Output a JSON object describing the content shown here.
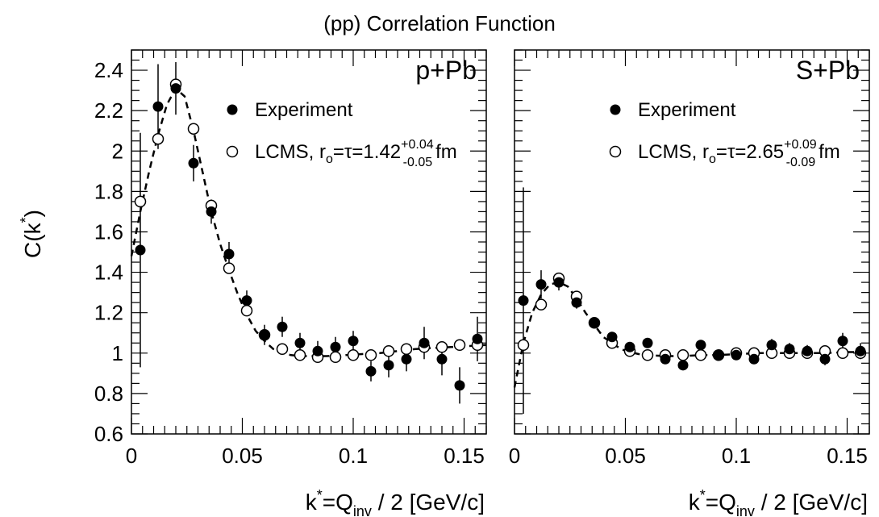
{
  "page": {
    "title": "(pp) Correlation Function",
    "ylabel_main": "C(k",
    "ylabel_sup": "*",
    "ylabel_close": ")"
  },
  "chart_data": [
    {
      "type": "scatter",
      "panel_label": "p+Pb",
      "xlabel_k": "k",
      "xlabel_sup": "*",
      "xlabel_eq": "=Q",
      "xlabel_sub": "inv",
      "xlabel_rest": " / 2  [GeV/c]",
      "xlim": [
        0,
        0.16
      ],
      "ylim": [
        0.6,
        2.5
      ],
      "xticks": [
        0,
        0.05,
        0.1,
        0.15
      ],
      "xtick_labels": [
        "0",
        "0.05",
        "0.1",
        "0.15"
      ],
      "yticks": [
        0.6,
        0.8,
        1,
        1.2,
        1.4,
        1.6,
        1.8,
        2,
        2.2,
        2.4
      ],
      "ytick_labels": [
        "0.6",
        "0.8",
        "1",
        "1.2",
        "1.4",
        "1.6",
        "1.8",
        "2",
        "2.2",
        "2.4"
      ],
      "legend": {
        "experiment": "Experiment",
        "lcms_main": "LCMS, r",
        "lcms_sub_o": "o",
        "lcms_mid": "=τ=1.42",
        "lcms_sup": "+0.04",
        "lcms_sub": "-0.05",
        "lcms_unit": "fm"
      },
      "series": [
        {
          "name": "Experiment",
          "marker": "filled-circle",
          "x": [
            0.004,
            0.012,
            0.02,
            0.028,
            0.036,
            0.044,
            0.052,
            0.06,
            0.068,
            0.076,
            0.084,
            0.092,
            0.1,
            0.108,
            0.116,
            0.124,
            0.132,
            0.14,
            0.148,
            0.156
          ],
          "y": [
            1.51,
            2.22,
            2.31,
            1.94,
            1.7,
            1.49,
            1.26,
            1.09,
            1.13,
            1.05,
            1.01,
            1.03,
            1.06,
            0.91,
            0.94,
            0.97,
            1.05,
            0.97,
            0.84,
            1.07
          ],
          "yerr": [
            0.58,
            0.21,
            0.13,
            0.09,
            0.06,
            0.06,
            0.05,
            0.05,
            0.05,
            0.05,
            0.05,
            0.05,
            0.05,
            0.05,
            0.06,
            0.06,
            0.08,
            0.08,
            0.09,
            0.11
          ]
        },
        {
          "name": "LCMS, r_o=τ=1.42 fm",
          "marker": "open-circle",
          "x": [
            0.004,
            0.012,
            0.02,
            0.028,
            0.036,
            0.044,
            0.052,
            0.06,
            0.068,
            0.076,
            0.084,
            0.092,
            0.1,
            0.108,
            0.116,
            0.124,
            0.132,
            0.14,
            0.148,
            0.156
          ],
          "y": [
            1.75,
            2.06,
            2.33,
            2.11,
            1.73,
            1.42,
            1.21,
            1.09,
            1.02,
            0.99,
            0.98,
            0.98,
            0.99,
            0.99,
            1.01,
            1.02,
            1.03,
            1.03,
            1.04,
            1.04
          ]
        }
      ],
      "fit_curve": {
        "x": [
          0.0,
          0.004,
          0.008,
          0.012,
          0.016,
          0.02,
          0.024,
          0.028,
          0.032,
          0.036,
          0.04,
          0.044,
          0.048,
          0.052,
          0.056,
          0.06,
          0.064,
          0.068,
          0.072,
          0.076,
          0.08,
          0.088,
          0.096,
          0.104,
          0.112,
          0.12,
          0.128,
          0.136,
          0.144,
          0.152,
          0.16
        ],
        "y": [
          1.48,
          1.7,
          1.9,
          2.08,
          2.23,
          2.31,
          2.27,
          2.1,
          1.9,
          1.7,
          1.54,
          1.41,
          1.29,
          1.19,
          1.11,
          1.06,
          1.02,
          1.0,
          0.99,
          0.985,
          0.985,
          0.985,
          0.99,
          0.995,
          1.0,
          1.01,
          1.02,
          1.025,
          1.03,
          1.035,
          1.04
        ]
      }
    },
    {
      "type": "scatter",
      "panel_label": "S+Pb",
      "xlabel_k": "k",
      "xlabel_sup": "*",
      "xlabel_eq": "=Q",
      "xlabel_sub": "inv",
      "xlabel_rest": " / 2  [GeV/c]",
      "xlim": [
        0,
        0.16
      ],
      "ylim": [
        0.6,
        2.5
      ],
      "xticks": [
        0,
        0.05,
        0.1,
        0.15
      ],
      "xtick_labels": [
        "0",
        "0.05",
        "0.1",
        "0.15"
      ],
      "legend": {
        "experiment": "Experiment",
        "lcms_main": "LCMS, r",
        "lcms_sub_o": "o",
        "lcms_mid": "=τ=2.65",
        "lcms_sup": "+0.09",
        "lcms_sub": "-0.09",
        "lcms_unit": "fm"
      },
      "series": [
        {
          "name": "Experiment",
          "marker": "filled-circle",
          "x": [
            0.004,
            0.012,
            0.02,
            0.028,
            0.036,
            0.044,
            0.052,
            0.06,
            0.068,
            0.076,
            0.084,
            0.092,
            0.1,
            0.108,
            0.116,
            0.124,
            0.132,
            0.14,
            0.148,
            0.156
          ],
          "y": [
            1.26,
            1.34,
            1.35,
            1.25,
            1.15,
            1.08,
            1.03,
            1.05,
            0.97,
            0.94,
            1.04,
            0.99,
            0.99,
            0.97,
            1.04,
            1.02,
            1.01,
            0.97,
            1.06,
            1.01
          ],
          "yerr": [
            0.56,
            0.07,
            0.04,
            0.03,
            0.02,
            0.02,
            0.02,
            0.02,
            0.02,
            0.02,
            0.02,
            0.02,
            0.02,
            0.02,
            0.03,
            0.03,
            0.03,
            0.03,
            0.04,
            0.04
          ]
        },
        {
          "name": "LCMS, r_o=τ=2.65 fm",
          "marker": "open-circle",
          "x": [
            0.004,
            0.012,
            0.02,
            0.028,
            0.036,
            0.044,
            0.052,
            0.06,
            0.068,
            0.076,
            0.084,
            0.092,
            0.1,
            0.108,
            0.116,
            0.124,
            0.132,
            0.14,
            0.148,
            0.156
          ],
          "y": [
            1.04,
            1.24,
            1.37,
            1.28,
            1.15,
            1.05,
            1.01,
            0.99,
            0.99,
            0.99,
            0.99,
            0.99,
            1.0,
            1.0,
            1.0,
            1.0,
            1.0,
            1.01,
            1.0,
            1.0
          ]
        }
      ],
      "fit_curve": {
        "x": [
          0.0,
          0.004,
          0.008,
          0.012,
          0.016,
          0.02,
          0.024,
          0.028,
          0.032,
          0.036,
          0.04,
          0.044,
          0.048,
          0.052,
          0.056,
          0.06,
          0.068,
          0.076,
          0.084,
          0.092,
          0.1,
          0.11,
          0.12,
          0.13,
          0.14,
          0.15,
          0.16
        ],
        "y": [
          0.83,
          1.05,
          1.2,
          1.29,
          1.34,
          1.35,
          1.33,
          1.27,
          1.2,
          1.14,
          1.08,
          1.05,
          1.02,
          1.005,
          0.995,
          0.99,
          0.985,
          0.985,
          0.99,
          0.99,
          0.995,
          1.0,
          1.0,
          1.0,
          1.0,
          1.005,
          1.005
        ]
      }
    }
  ]
}
